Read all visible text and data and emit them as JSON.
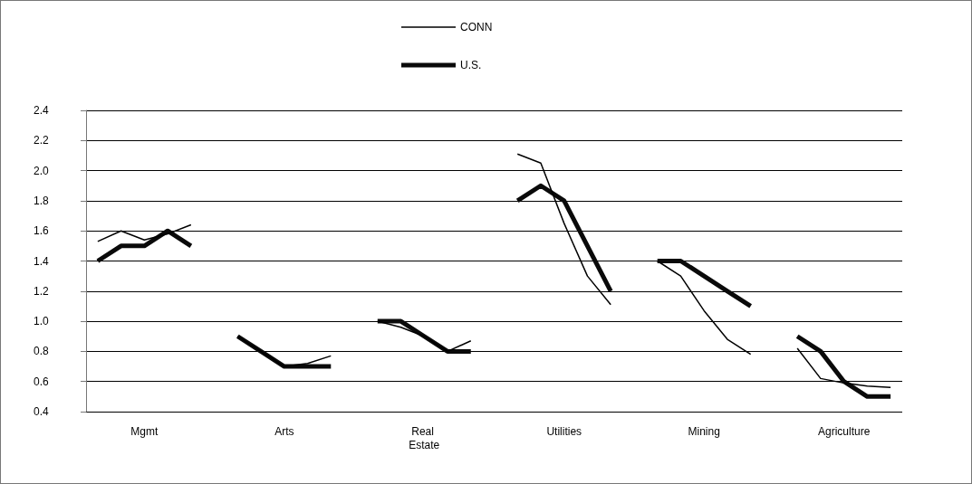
{
  "chart_data": {
    "type": "line",
    "categories": [
      null,
      null,
      "Mgmt",
      null,
      null,
      null,
      null,
      null,
      "Arts",
      null,
      null,
      null,
      null,
      null,
      "Real Estate",
      null,
      null,
      null,
      null,
      null,
      "Utilities",
      null,
      null,
      null,
      null,
      null,
      "Mining",
      null,
      null,
      null,
      null,
      null,
      "Agriculture",
      null,
      null
    ],
    "series": [
      {
        "name": "CONN",
        "color": "#000000",
        "values": [
          1.53,
          1.6,
          1.54,
          1.58,
          1.64,
          null,
          0.9,
          0.8,
          0.7,
          0.72,
          0.77,
          null,
          1.0,
          0.96,
          0.9,
          0.8,
          0.87,
          null,
          2.11,
          2.05,
          1.65,
          1.3,
          1.11,
          null,
          1.4,
          1.3,
          1.07,
          0.88,
          0.78,
          null,
          0.82,
          0.62,
          0.59,
          0.57,
          0.56
        ]
      },
      {
        "name": "U.S.",
        "color": "#0a0a0a",
        "values": [
          1.4,
          1.5,
          1.5,
          1.6,
          1.5,
          null,
          0.9,
          0.8,
          0.7,
          0.7,
          0.7,
          null,
          1.0,
          1.0,
          0.9,
          0.8,
          0.8,
          null,
          1.8,
          1.9,
          1.8,
          1.5,
          1.2,
          null,
          1.4,
          1.4,
          1.3,
          1.2,
          1.1,
          null,
          0.9,
          0.8,
          0.6,
          0.5,
          0.5
        ]
      }
    ],
    "ylim": [
      0.4,
      2.4
    ],
    "yticks": [
      0.4,
      0.6,
      0.8,
      {
        "value": 1.0,
        "label": "1.0"
      },
      1.2,
      1.4,
      1.6,
      1.8,
      {
        "value": 2.0,
        "label": "2.0"
      },
      2.2,
      2.4
    ],
    "grid": "y",
    "legend": "top",
    "marker": "none"
  }
}
